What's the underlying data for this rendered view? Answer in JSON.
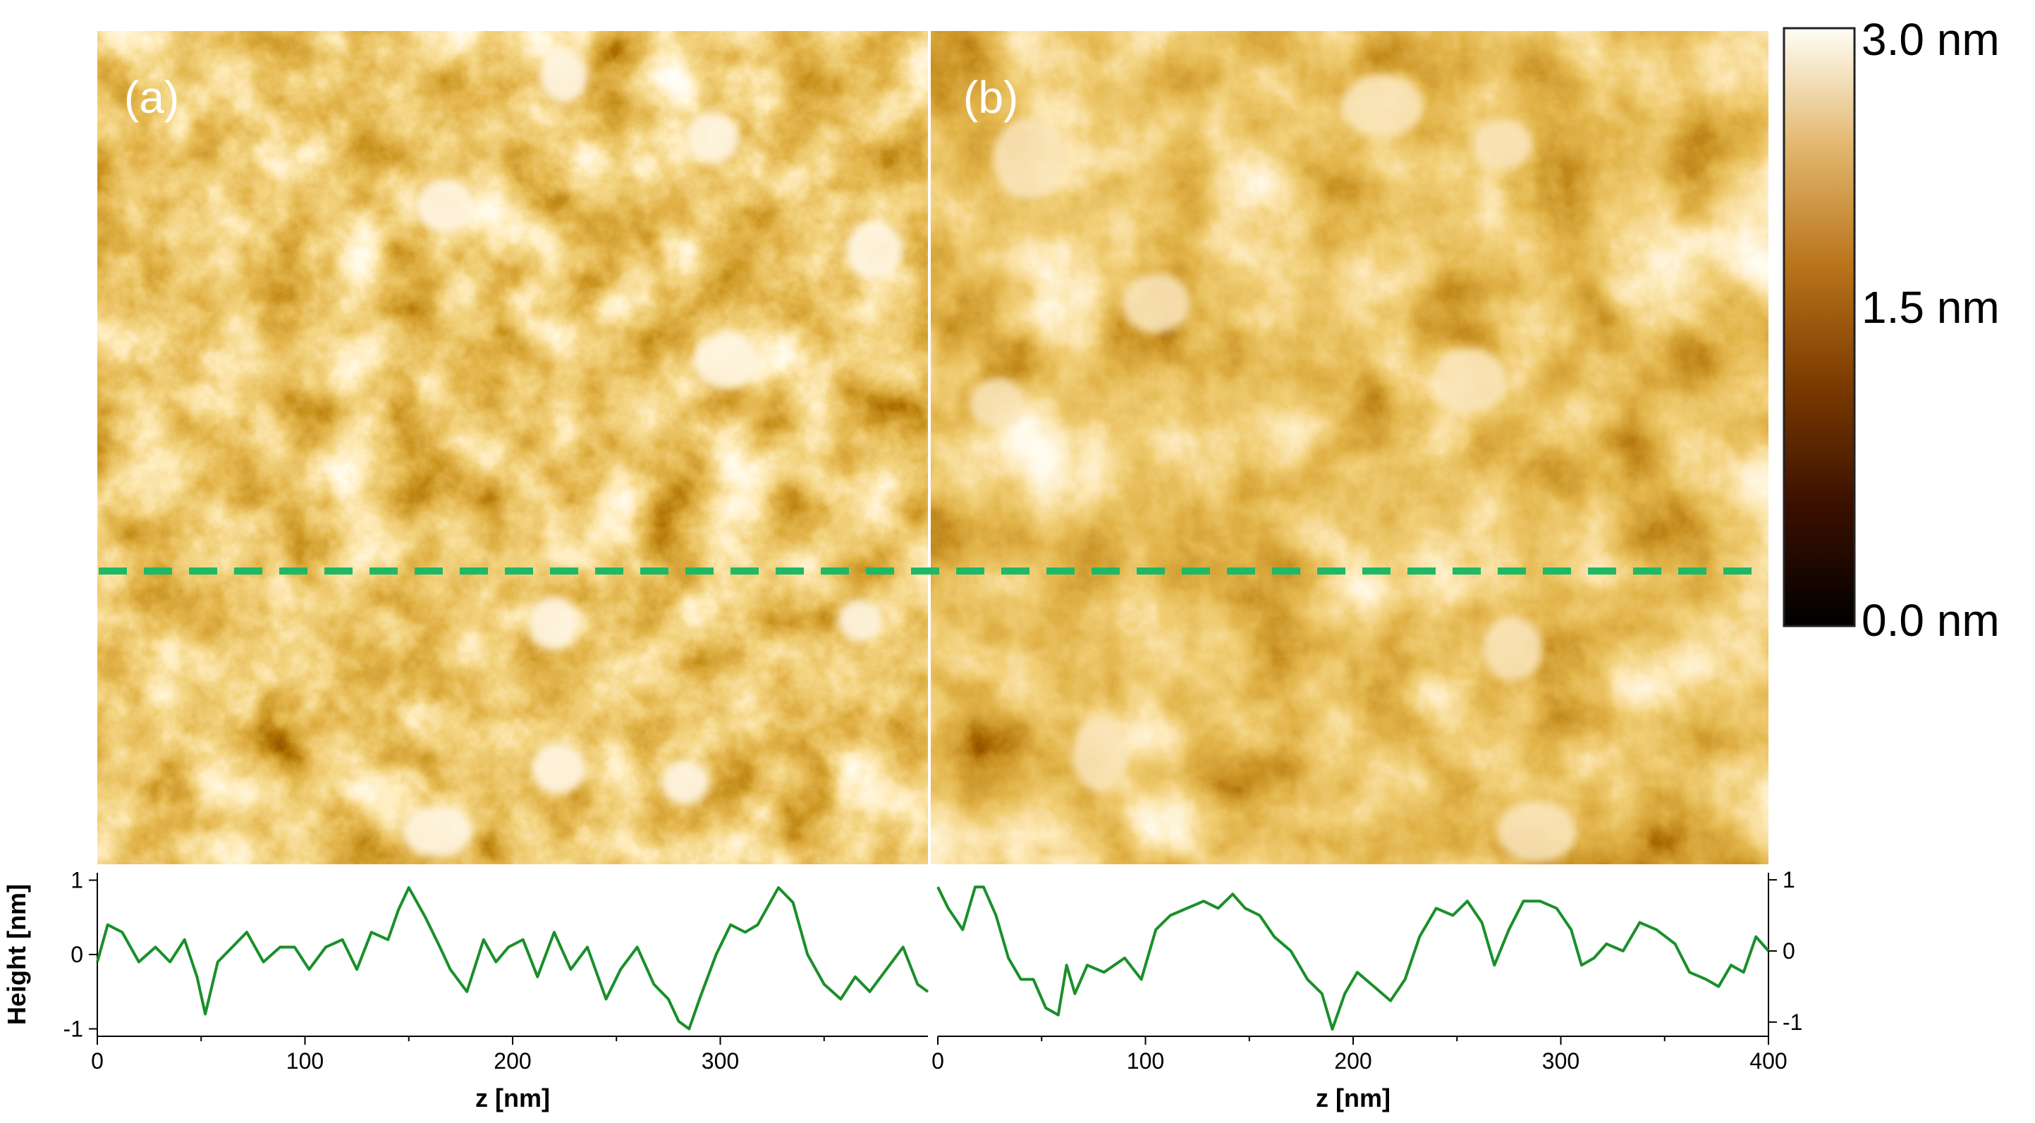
{
  "figure": {
    "panels": [
      {
        "label": "(a)"
      },
      {
        "label": "(b)"
      }
    ],
    "colorbar": {
      "max_label": "3.0 nm",
      "mid_label": "1.5 nm",
      "min_label": "0.0 nm",
      "range_nm": [
        0,
        3.0
      ],
      "colors": [
        "#000000",
        "#3a0f00",
        "#7a3a00",
        "#b8731a",
        "#e2b66c",
        "#fffdf4"
      ]
    },
    "scan_line_color": "#1fb866",
    "profile_color": "#1a8f2a"
  },
  "chart_data": [
    {
      "type": "line",
      "panel": "(a)",
      "title": "",
      "xlabel": "z [nm]",
      "ylabel": "Height [nm]",
      "xlim": [
        0,
        400
      ],
      "ylim": [
        -1.1,
        1.1
      ],
      "x_ticks": [
        "0",
        "100",
        "200",
        "300"
      ],
      "y_ticks": [
        "1",
        "0",
        "-1"
      ],
      "series": [
        {
          "x": [
            0,
            5,
            12,
            20,
            28,
            35,
            42,
            48,
            52,
            58,
            65,
            72,
            80,
            88,
            95,
            102,
            110,
            118,
            125,
            132,
            140,
            145,
            150,
            158,
            165,
            170,
            178,
            186,
            192,
            198,
            205,
            212,
            220,
            228,
            236,
            245,
            252,
            260,
            268,
            275,
            280,
            285,
            290,
            298,
            305,
            312,
            318,
            322,
            328,
            335,
            342,
            350,
            358,
            365,
            372,
            380,
            388,
            395,
            400
          ],
          "y": [
            -0.1,
            0.4,
            0.3,
            -0.1,
            0.1,
            -0.1,
            0.2,
            -0.3,
            -0.8,
            -0.1,
            0.1,
            0.3,
            -0.1,
            0.1,
            0.1,
            -0.2,
            0.1,
            0.2,
            -0.2,
            0.3,
            0.2,
            0.6,
            0.9,
            0.5,
            0.1,
            -0.2,
            -0.5,
            0.2,
            -0.1,
            0.1,
            0.2,
            -0.3,
            0.3,
            -0.2,
            0.1,
            -0.6,
            -0.2,
            0.1,
            -0.4,
            -0.6,
            -0.9,
            -1.0,
            -0.6,
            0.0,
            0.4,
            0.3,
            0.4,
            0.6,
            0.9,
            0.7,
            0.0,
            -0.4,
            -0.6,
            -0.3,
            -0.5,
            -0.2,
            0.1,
            -0.4,
            -0.5
          ]
        }
      ]
    },
    {
      "type": "line",
      "panel": "(b)",
      "title": "",
      "xlabel": "z [nm]",
      "ylabel": "",
      "xlim": [
        0,
        400
      ],
      "ylim": [
        -1.2,
        1.1
      ],
      "x_ticks": [
        "0",
        "100",
        "200",
        "300",
        "400"
      ],
      "y_ticks": [
        "1",
        "0",
        "-1"
      ],
      "series": [
        {
          "x": [
            0,
            5,
            12,
            18,
            22,
            28,
            34,
            40,
            46,
            52,
            58,
            62,
            66,
            72,
            80,
            90,
            98,
            105,
            112,
            120,
            128,
            135,
            142,
            148,
            155,
            162,
            170,
            178,
            185,
            190,
            196,
            202,
            210,
            218,
            225,
            232,
            240,
            248,
            255,
            262,
            268,
            275,
            282,
            290,
            298,
            305,
            310,
            316,
            322,
            330,
            338,
            346,
            355,
            362,
            370,
            376,
            382,
            388,
            394,
            400
          ],
          "y": [
            0.9,
            0.6,
            0.3,
            0.9,
            0.9,
            0.5,
            -0.1,
            -0.4,
            -0.4,
            -0.8,
            -0.9,
            -0.2,
            -0.6,
            -0.2,
            -0.3,
            -0.1,
            -0.4,
            0.3,
            0.5,
            0.6,
            0.7,
            0.6,
            0.8,
            0.6,
            0.5,
            0.2,
            0.0,
            -0.4,
            -0.6,
            -1.1,
            -0.6,
            -0.3,
            -0.5,
            -0.7,
            -0.4,
            0.2,
            0.6,
            0.5,
            0.7,
            0.4,
            -0.2,
            0.3,
            0.7,
            0.7,
            0.6,
            0.3,
            -0.2,
            -0.1,
            0.1,
            0.0,
            0.4,
            0.3,
            0.1,
            -0.3,
            -0.4,
            -0.5,
            -0.2,
            -0.3,
            0.2,
            0.0
          ]
        }
      ]
    }
  ]
}
